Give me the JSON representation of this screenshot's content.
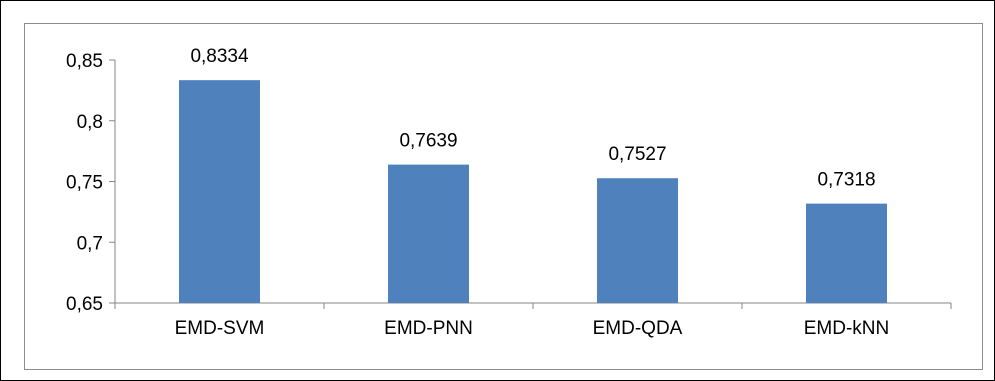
{
  "chart_data": {
    "type": "bar",
    "categories": [
      "EMD-SVM",
      "EMD-PNN",
      "EMD-QDA",
      "EMD-kNN"
    ],
    "values": [
      0.8334,
      0.7639,
      0.7527,
      0.7318
    ],
    "value_labels": [
      "0,8334",
      "0,7639",
      "0,7527",
      "0,7318"
    ],
    "title": "",
    "xlabel": "",
    "ylabel": "",
    "ylim": [
      0.65,
      0.85
    ],
    "yticks": [
      0.65,
      0.7,
      0.75,
      0.8,
      0.85
    ],
    "ytick_labels": [
      "0,65",
      "0,7",
      "0,75",
      "0,8",
      "0,85"
    ],
    "grid": false,
    "legend": "none",
    "bar_color": "#4f81bd",
    "axis_color": "#868686"
  }
}
